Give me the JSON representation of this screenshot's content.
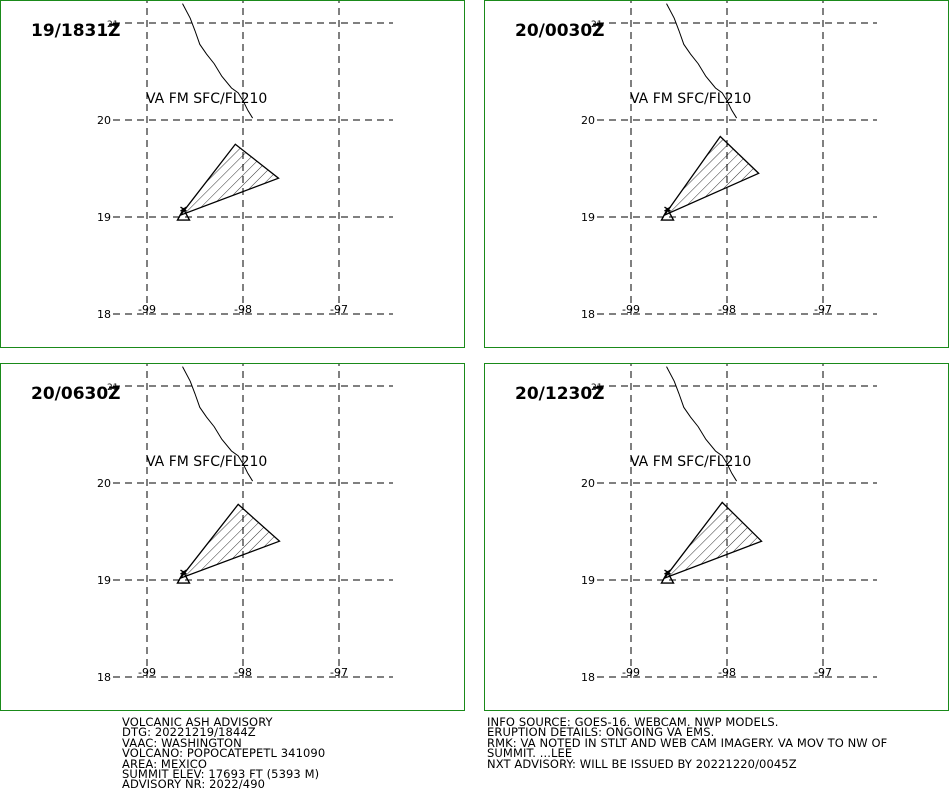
{
  "panels": [
    {
      "time_label": "19/1831Z",
      "level_label": "VA FM SFC/FL210",
      "ash_polygon": [
        [
          -98.65,
          19.02
        ],
        [
          -98.08,
          19.75
        ],
        [
          -97.63,
          19.4
        ]
      ]
    },
    {
      "time_label": "20/0030Z",
      "level_label": "VA FM SFC/FL210",
      "ash_polygon": [
        [
          -98.65,
          19.02
        ],
        [
          -98.07,
          19.83
        ],
        [
          -97.67,
          19.45
        ]
      ]
    },
    {
      "time_label": "20/0630Z",
      "level_label": "VA FM SFC/FL210",
      "ash_polygon": [
        [
          -98.65,
          19.02
        ],
        [
          -98.05,
          19.78
        ],
        [
          -97.62,
          19.4
        ]
      ]
    },
    {
      "time_label": "20/1230Z",
      "level_label": "VA FM SFC/FL210",
      "ash_polygon": [
        [
          -98.65,
          19.02
        ],
        [
          -98.05,
          19.8
        ],
        [
          -97.64,
          19.4
        ]
      ]
    }
  ],
  "axes": {
    "lat_ticks": [
      "18",
      "19",
      "20",
      "21"
    ],
    "lon_ticks": [
      "-99",
      "-98",
      "-97"
    ]
  },
  "volcano": {
    "lat": 19.02,
    "lon": -98.62
  },
  "advisory_left": [
    "VOLCANIC ASH ADVISORY",
    "DTG: 20221219/1844Z",
    "VAAC: WASHINGTON",
    "VOLCANO: POPOCATEPETL 341090",
    "AREA: MEXICO",
    "SUMMIT ELEV: 17693 FT (5393 M)",
    "ADVISORY NR: 2022/490"
  ],
  "advisory_right": [
    "INFO SOURCE: GOES-16. WEBCAM. NWP MODELS.",
    "ERUPTION DETAILS: ONGOING VA EMS.",
    "RMK: VA NOTED IN STLT AND WEB CAM IMAGERY. VA MOV TO NW OF",
    "SUMMIT. ...LEE",
    "NXT ADVISORY: WILL BE ISSUED BY 20221220/0045Z"
  ]
}
